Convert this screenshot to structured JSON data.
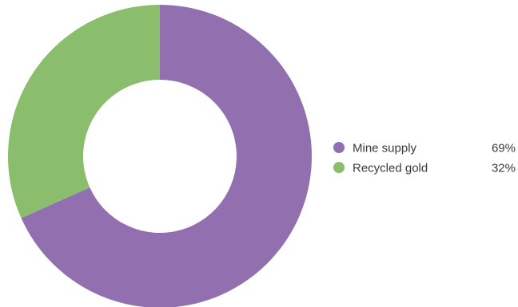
{
  "chart_data": {
    "type": "pie",
    "style": "donut",
    "title": "",
    "slices": [
      {
        "label": "Mine supply",
        "value": 69,
        "value_label": "69%",
        "color": "#9270b0"
      },
      {
        "label": "Recycled gold",
        "value": 32,
        "value_label": "32%",
        "color": "#8abd6c"
      }
    ],
    "start_angle_deg": 0,
    "direction": "clockwise",
    "legend_position": "right"
  }
}
